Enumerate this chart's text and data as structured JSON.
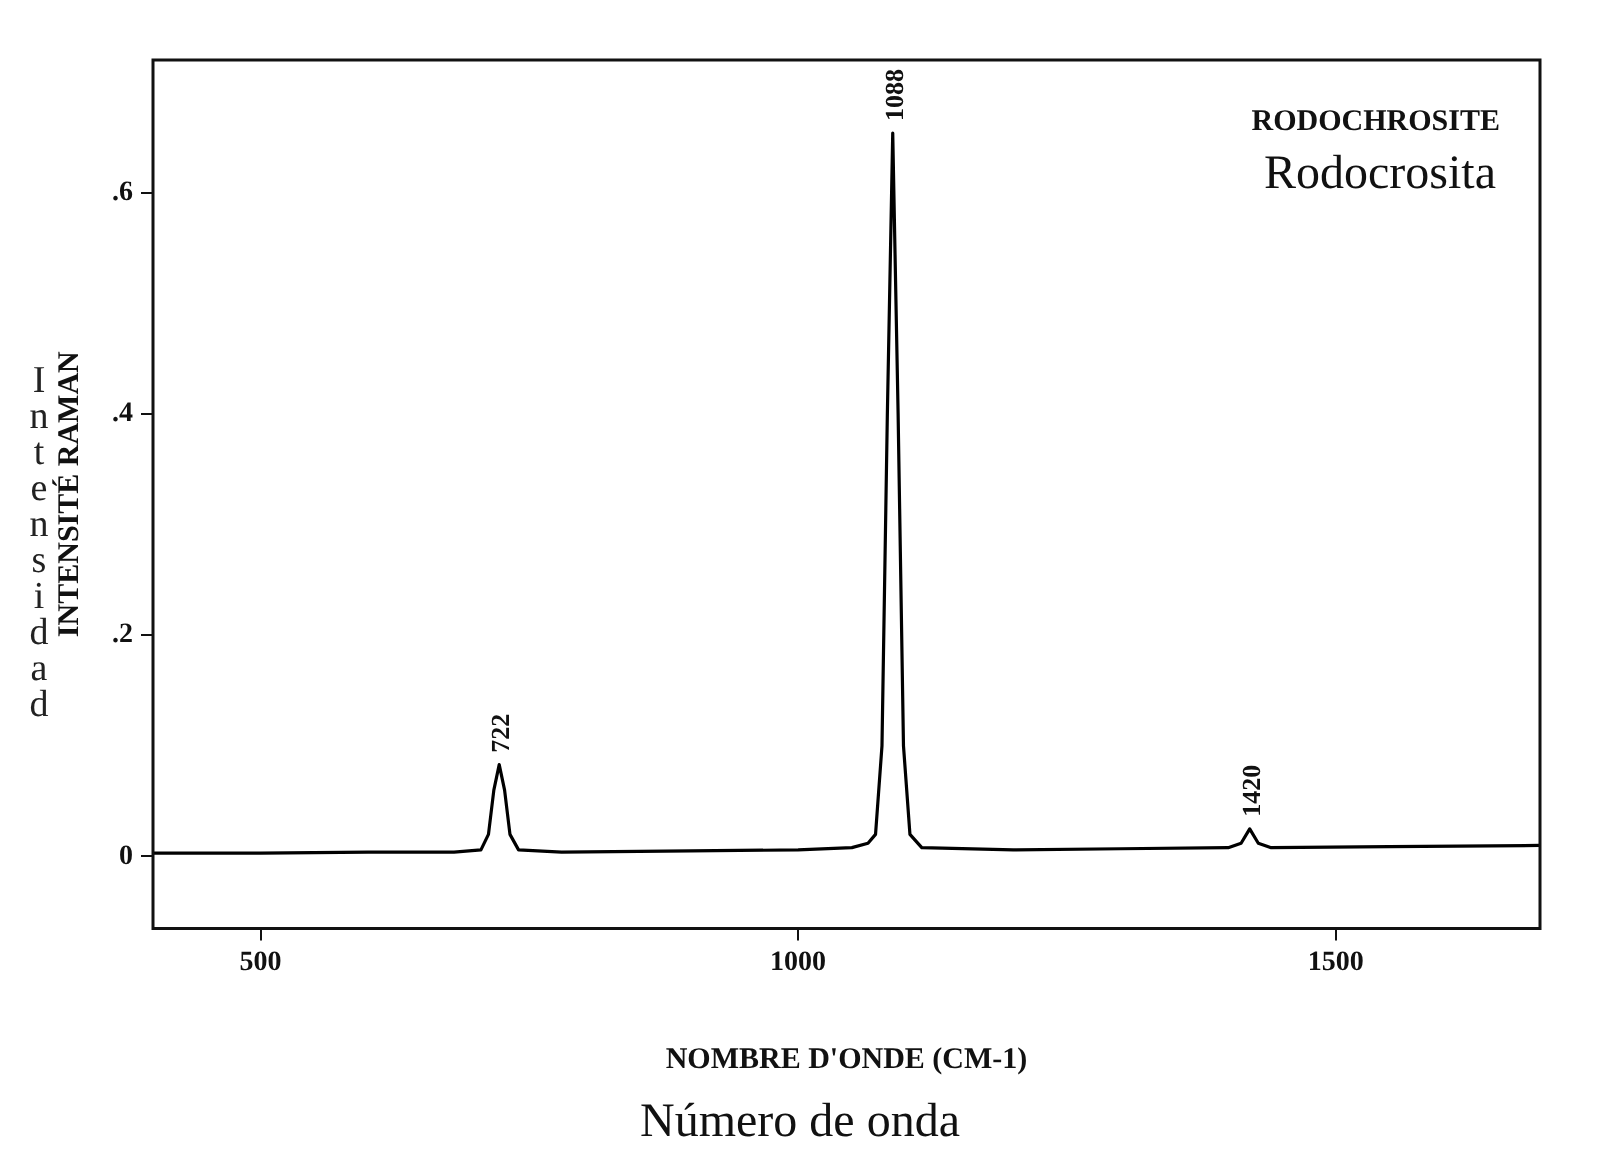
{
  "chart_data": {
    "type": "line",
    "title": "RODOCHROSITE",
    "subtitle": "Rodocrosita",
    "xlabel": "NOMBRE D'ONDE (CM-1)",
    "ylabel": "INTENSITÉ RAMAN",
    "annotations": [
      "Intensidad",
      "Número de onda",
      {
        "text": "722",
        "x": 722,
        "y": 0.083
      },
      {
        "text": "1088",
        "x": 1088,
        "y": 0.654
      },
      {
        "text": "1420",
        "x": 1420,
        "y": 0.025
      }
    ],
    "x": [
      400,
      500,
      600,
      680,
      705,
      712,
      717,
      722,
      727,
      732,
      740,
      780,
      900,
      1000,
      1050,
      1065,
      1072,
      1078,
      1083,
      1088,
      1093,
      1098,
      1104,
      1115,
      1200,
      1300,
      1400,
      1412,
      1420,
      1428,
      1440,
      1550,
      1690
    ],
    "series": [
      {
        "color": "#000000",
        "values": [
          0.003,
          0.003,
          0.004,
          0.004,
          0.006,
          0.02,
          0.06,
          0.083,
          0.06,
          0.02,
          0.006,
          0.004,
          0.005,
          0.006,
          0.008,
          0.012,
          0.02,
          0.1,
          0.4,
          0.654,
          0.4,
          0.1,
          0.02,
          0.008,
          0.006,
          0.007,
          0.008,
          0.012,
          0.025,
          0.012,
          0.008,
          0.009,
          0.01
        ]
      }
    ],
    "xlim": [
      400,
      1690
    ],
    "xticks": [
      500,
      1000,
      1500
    ],
    "ylim": [
      -0.065,
      0.72
    ],
    "yticks": [
      {
        "value": 0,
        "label": "0"
      },
      {
        "value": 0.2,
        "label": ".2"
      },
      {
        "value": 0.4,
        "label": ".4"
      },
      {
        "value": 0.6,
        "label": ".6"
      }
    ],
    "grid": false,
    "legend": false,
    "marker": "none",
    "line_style": "solid"
  }
}
